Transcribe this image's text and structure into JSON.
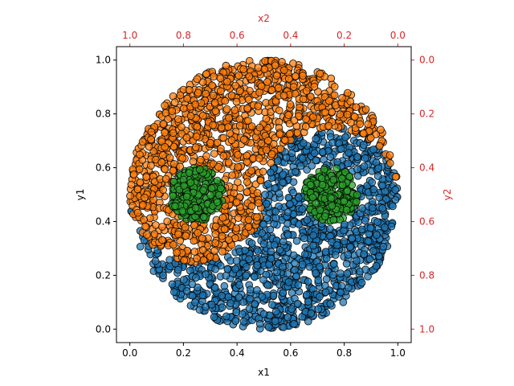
{
  "chart_data": {
    "type": "scatter",
    "title": "",
    "xlabel": "x1",
    "ylabel": "y1",
    "x2label": "x2",
    "y2label": "y2",
    "xlim": [
      -0.05,
      1.05
    ],
    "ylim": [
      -0.05,
      1.05
    ],
    "x2lim": [
      1.05,
      -0.05
    ],
    "y2lim": [
      1.05,
      -0.05
    ],
    "xticks": [
      "0.0",
      "0.2",
      "0.4",
      "0.6",
      "0.8",
      "1.0"
    ],
    "yticks": [
      "0.0",
      "0.2",
      "0.4",
      "0.6",
      "0.8",
      "1.0"
    ],
    "x2ticks": [
      "1.0",
      "0.8",
      "0.6",
      "0.4",
      "0.2",
      "0.0"
    ],
    "y2ticks": [
      "0.0",
      "0.2",
      "0.4",
      "0.6",
      "0.8",
      "1.0"
    ],
    "secondary_axis_color": "#d62728",
    "grid": false,
    "shape": "yin-yang disk of radius 0.5 centered at (0.5, 0.5); inner circles of radius 0.1 at (0.25, 0.5) and (0.75, 0.5)",
    "series": [
      {
        "name": "",
        "color": "#1f77b4",
        "region": "lower half of disk plus right lobe, excluding inner circle"
      },
      {
        "name": "",
        "color": "#ff7f0e",
        "region": "upper half of disk plus left lobe, excluding inner circle"
      },
      {
        "name": "",
        "color": "#2ca02c",
        "region": "inner circles of radius 0.1 at (0.25, 0.5) and (0.75, 0.5)"
      }
    ],
    "marker": {
      "edgecolor": "#000000",
      "alpha": 0.75
    }
  }
}
